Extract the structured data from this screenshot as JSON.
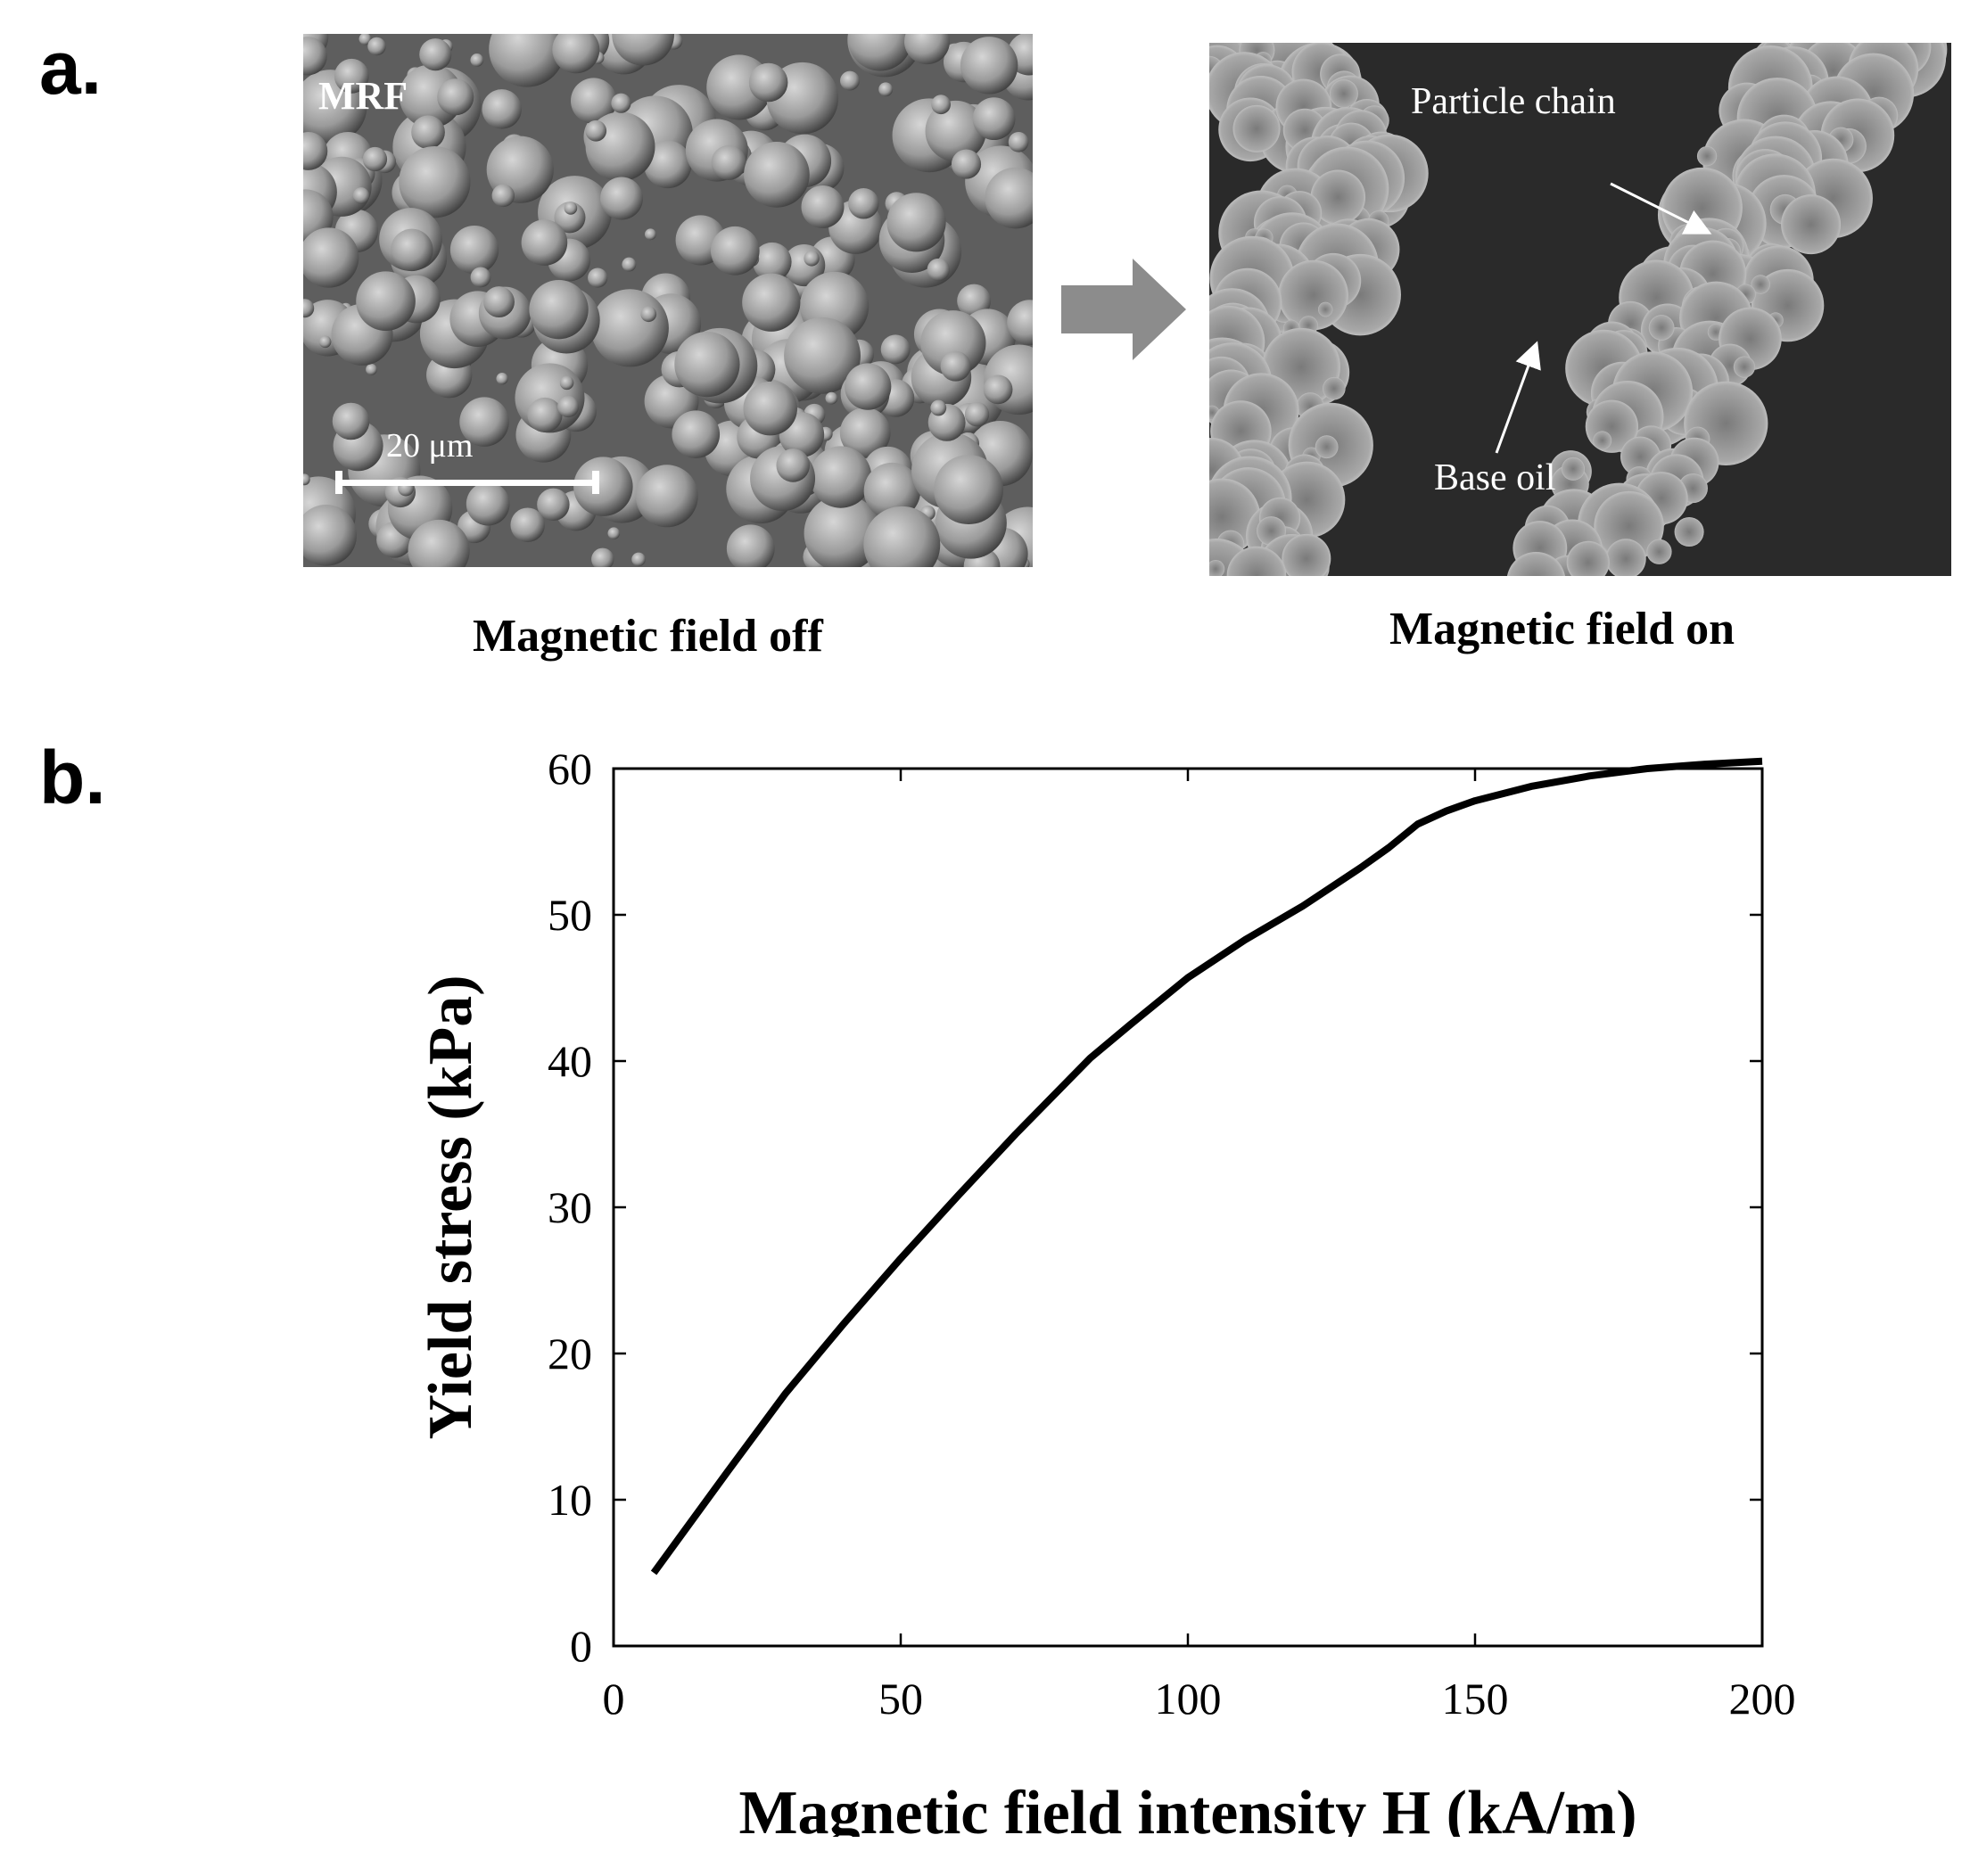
{
  "panel_a": {
    "letter": "a.",
    "left_image": {
      "label": "MRF",
      "scale_bar_label": "20 μm",
      "caption": "Magnetic field off"
    },
    "right_image": {
      "particle_label": "Particle chain",
      "oil_label": "Base oil",
      "caption": "Magnetic field on"
    },
    "arrow_color": "#8c8c8c"
  },
  "panel_b": {
    "letter": "b."
  },
  "chart_data": {
    "type": "line",
    "title": "",
    "xlabel": "Magnetic field intensity H (kA/m)",
    "ylabel": "Yield stress (kPa)",
    "xlim": [
      0,
      200
    ],
    "ylim": [
      0,
      60
    ],
    "xticks": [
      0,
      50,
      100,
      150,
      200
    ],
    "yticks": [
      0,
      10,
      20,
      30,
      40,
      50,
      60
    ],
    "grid": false,
    "line_color": "#000000",
    "series": [
      {
        "x": [
          7,
          20,
          30,
          40,
          50,
          60,
          70,
          83,
          90,
          100,
          110,
          120,
          130,
          135,
          140,
          145,
          150,
          160,
          170,
          180,
          190,
          200
        ],
        "y": [
          5,
          12,
          17.3,
          22,
          26.5,
          30.8,
          35,
          40.2,
          42.5,
          45.7,
          48.3,
          50.6,
          53.2,
          54.6,
          56.2,
          57.1,
          57.8,
          58.8,
          59.5,
          60,
          60.3,
          60.5
        ]
      }
    ]
  }
}
